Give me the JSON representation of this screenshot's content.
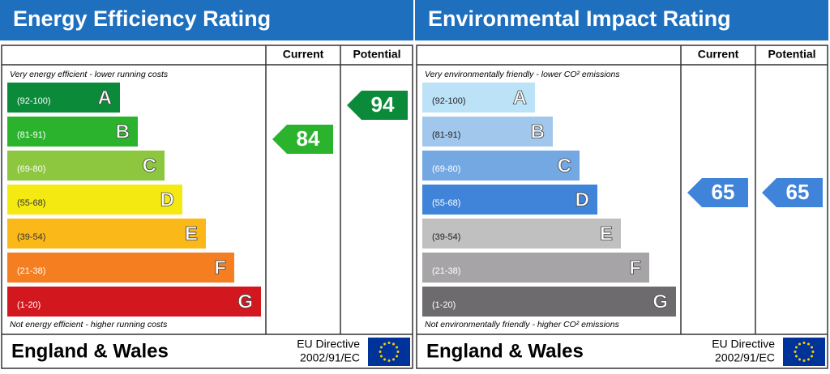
{
  "panels": [
    {
      "title": "Energy Efficiency Rating",
      "current_header": "Current",
      "potential_header": "Potential",
      "top_note": "Very energy efficient - lower running costs",
      "bottom_note": "Not energy efficient - higher running costs",
      "bands": [
        {
          "range": "(92-100)",
          "letter": "A",
          "color": "#0b8a3a",
          "text_color": "#ffffff"
        },
        {
          "range": "(81-91)",
          "letter": "B",
          "color": "#2bb32d",
          "text_color": "#ffffff"
        },
        {
          "range": "(69-80)",
          "letter": "C",
          "color": "#8dc63f",
          "text_color": "#ffffff"
        },
        {
          "range": "(55-68)",
          "letter": "D",
          "color": "#f5e912",
          "text_color": "#333333"
        },
        {
          "range": "(39-54)",
          "letter": "E",
          "color": "#fbb819",
          "text_color": "#333333"
        },
        {
          "range": "(21-38)",
          "letter": "F",
          "color": "#f47e20",
          "text_color": "#ffffff"
        },
        {
          "range": "(1-20)",
          "letter": "G",
          "color": "#d2171e",
          "text_color": "#ffffff"
        }
      ],
      "current": 84,
      "current_color": "#2bb32d",
      "potential": 94,
      "potential_color": "#0b8a3a",
      "footer": "England & Wales",
      "directive": [
        "EU Directive",
        "2002/91/EC"
      ]
    },
    {
      "title": "Environmental Impact Rating",
      "current_header": "Current",
      "potential_header": "Potential",
      "top_note": "Very environmentally friendly - lower CO² emissions",
      "bottom_note": "Not environmentally friendly - higher CO² emissions",
      "bands": [
        {
          "range": "(92-100)",
          "letter": "A",
          "color": "#bbe2f7",
          "text_color": "#222222"
        },
        {
          "range": "(81-91)",
          "letter": "B",
          "color": "#a1c7ed",
          "text_color": "#222222"
        },
        {
          "range": "(69-80)",
          "letter": "C",
          "color": "#73a8e3",
          "text_color": "#ffffff"
        },
        {
          "range": "(55-68)",
          "letter": "D",
          "color": "#3f84d9",
          "text_color": "#ffffff"
        },
        {
          "range": "(39-54)",
          "letter": "E",
          "color": "#c0c0c0",
          "text_color": "#222222"
        },
        {
          "range": "(21-38)",
          "letter": "F",
          "color": "#a7a4a7",
          "text_color": "#ffffff"
        },
        {
          "range": "(1-20)",
          "letter": "G",
          "color": "#6d6b6e",
          "text_color": "#ffffff"
        }
      ],
      "current": 65,
      "current_color": "#3f84d9",
      "potential": 65,
      "potential_color": "#3f84d9",
      "footer": "England & Wales",
      "directive": [
        "EU Directive",
        "2002/91/EC"
      ]
    }
  ]
}
